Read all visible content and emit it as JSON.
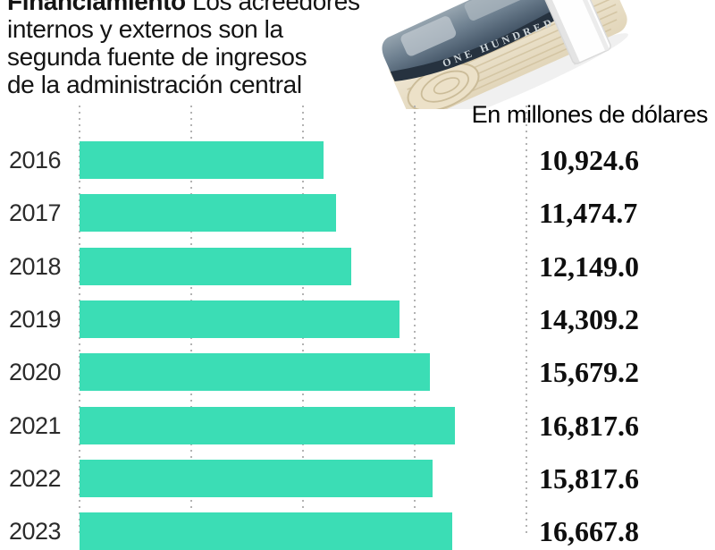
{
  "headline": {
    "lead": "Financiamiento",
    "lines": [
      "Los acreedores",
      "internos y externos son la",
      "segunda fuente de ingresos",
      "de la administración central"
    ]
  },
  "money_image": {
    "description": "rollo de billetes de cien dólares con banda blanca",
    "visible_text": "ONE HUNDRED"
  },
  "chart_data": {
    "type": "bar",
    "orientation": "horizontal",
    "title": "Financiamiento — Los acreedores internos y externos son la segunda fuente de ingresos de la administración central",
    "unit_label": "En millones de dólares",
    "categories": [
      "2016",
      "2017",
      "2018",
      "2019",
      "2020",
      "2021",
      "2022",
      "2023"
    ],
    "values": [
      10924.6,
      11474.7,
      12149.0,
      14309.2,
      15679.2,
      16817.6,
      15817.6,
      16667.8
    ],
    "value_labels": [
      "10,924.6",
      "11,474.7",
      "12,149.0",
      "14,309.2",
      "15,679.2",
      "16,817.6",
      "15,817.6",
      "16,667.8"
    ],
    "xlim": [
      0,
      20000
    ],
    "grid": {
      "style": "dotted-vertical",
      "step": 5000
    },
    "legend": "none",
    "colors": {
      "bar": "#3BDDB5",
      "gridline": "#b3b3b3",
      "headline_text": "#141414",
      "value_text": "#0e0e0e",
      "year_text": "#2b2b2b"
    }
  }
}
